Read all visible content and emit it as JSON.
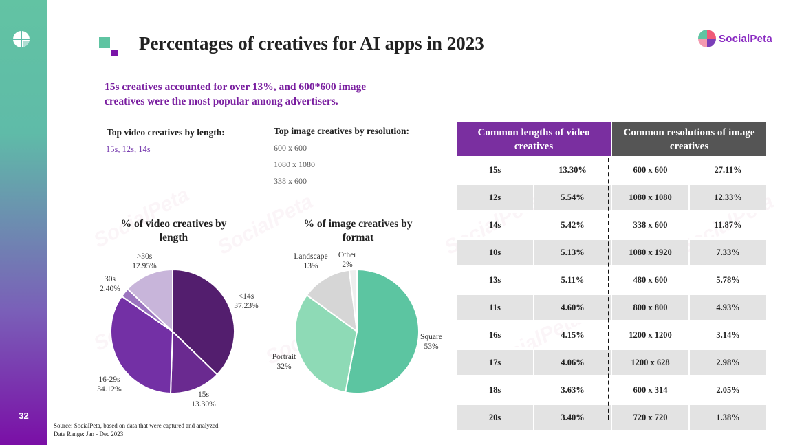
{
  "slide": {
    "title": "Percentages of creatives for AI apps in 2023",
    "page_number": "32",
    "brand": "SocialPeta",
    "subtitle_line1": "15s creatives accounted for over 13%, and 600*600 image",
    "subtitle_line2": "creatives were the most popular among advertisers.",
    "top_video_label": "Top video creatives by length:",
    "top_video_values": "15s, 12s, 14s",
    "top_image_label": "Top image creatives by resolution:",
    "top_image_values": [
      "600 x 600",
      "1080 x 1080",
      "338 x 600"
    ],
    "footer_source": "Source: SocialPeta, based on data that were captured and analyzed.",
    "footer_date": "Date Range: Jan - Dec 2023"
  },
  "chart_data": [
    {
      "type": "pie",
      "title": "% of video creatives by length",
      "slices": [
        {
          "label": "<14s",
          "value": 37.23,
          "display": "37.23%",
          "color": "#531e6e"
        },
        {
          "label": "15s",
          "value": 13.3,
          "display": "13.30%",
          "color": "#6a2a90"
        },
        {
          "label": "16-29s",
          "value": 34.12,
          "display": "34.12%",
          "color": "#7330a5"
        },
        {
          "label": "30s",
          "value": 2.4,
          "display": "2.40%",
          "color": "#9b74bf"
        },
        {
          "label": ">30s",
          "value": 12.95,
          "display": "12.95%",
          "color": "#c8b5da"
        }
      ]
    },
    {
      "type": "pie",
      "title": "% of image creatives by format",
      "slices": [
        {
          "label": "Square",
          "value": 53,
          "display": "53%",
          "color": "#5cc5a1"
        },
        {
          "label": "Portrait",
          "value": 32,
          "display": "32%",
          "color": "#8edab6"
        },
        {
          "label": "Landscape",
          "value": 13,
          "display": "13%",
          "color": "#d6d6d6"
        },
        {
          "label": "Other",
          "value": 2,
          "display": "2%",
          "color": "#eeeeee"
        }
      ]
    },
    {
      "type": "table",
      "headers": {
        "video": "Common lengths of video creatives",
        "image": "Common resolutions of image creatives"
      },
      "header_colors": {
        "video": "#7a2fa0",
        "image": "#555555"
      },
      "rows": [
        {
          "length": "15s",
          "video_pct": "13.30%",
          "resolution": "600 x 600",
          "image_pct": "27.11%"
        },
        {
          "length": "12s",
          "video_pct": "5.54%",
          "resolution": "1080 x 1080",
          "image_pct": "12.33%"
        },
        {
          "length": "14s",
          "video_pct": "5.42%",
          "resolution": "338 x 600",
          "image_pct": "11.87%"
        },
        {
          "length": "10s",
          "video_pct": "5.13%",
          "resolution": "1080 x 1920",
          "image_pct": "7.33%"
        },
        {
          "length": "13s",
          "video_pct": "5.11%",
          "resolution": "480 x 600",
          "image_pct": "5.78%"
        },
        {
          "length": "11s",
          "video_pct": "4.60%",
          "resolution": "800 x 800",
          "image_pct": "4.93%"
        },
        {
          "length": "16s",
          "video_pct": "4.15%",
          "resolution": "1200 x 1200",
          "image_pct": "3.14%"
        },
        {
          "length": "17s",
          "video_pct": "4.06%",
          "resolution": "1200 x 628",
          "image_pct": "2.98%"
        },
        {
          "length": "18s",
          "video_pct": "3.63%",
          "resolution": "600 x 314",
          "image_pct": "2.05%"
        },
        {
          "length": "20s",
          "video_pct": "3.40%",
          "resolution": "720 x 720",
          "image_pct": "1.38%"
        }
      ]
    }
  ]
}
